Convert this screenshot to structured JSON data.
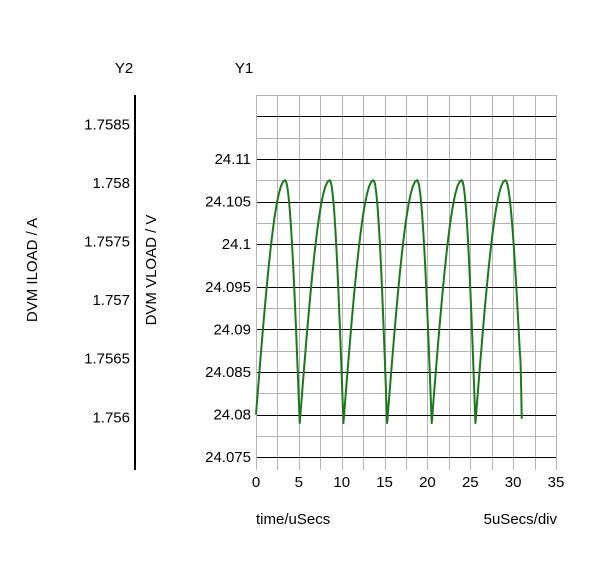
{
  "chart_data": {
    "type": "line",
    "xlabel": "time/uSecs",
    "x_scale_note": "5uSecs/div",
    "xlim": [
      0,
      35
    ],
    "x_ticks": [
      "0",
      "5",
      "10",
      "15",
      "20",
      "25",
      "30",
      "35"
    ],
    "y1": {
      "axis_title": "Y1",
      "label": "DVM VLOAD / V",
      "ylim": [
        24.0735,
        24.1175
      ],
      "ticks": [
        "24.11",
        "24.105",
        "24.1",
        "24.095",
        "24.09",
        "24.085",
        "24.08",
        "24.075"
      ]
    },
    "y2": {
      "axis_title": "Y2",
      "label": "DVM ILOAD / A",
      "ylim": [
        1.75555,
        1.75875
      ],
      "ticks": [
        "1.7585",
        "1.758",
        "1.7575",
        "1.757",
        "1.7565",
        "1.756"
      ]
    },
    "grid": true,
    "series": [
      {
        "axis": "y1",
        "color": "#1a7a1a",
        "x": [
          0.0,
          3.4,
          5.1,
          8.6,
          10.2,
          13.7,
          15.3,
          18.8,
          20.5,
          24.0,
          25.6,
          29.1,
          30.8,
          31.0
        ],
        "y": [
          24.08,
          24.1075,
          24.079,
          24.1075,
          24.079,
          24.1075,
          24.079,
          24.1075,
          24.079,
          24.1075,
          24.079,
          24.1075,
          24.087,
          24.0795
        ]
      }
    ]
  }
}
